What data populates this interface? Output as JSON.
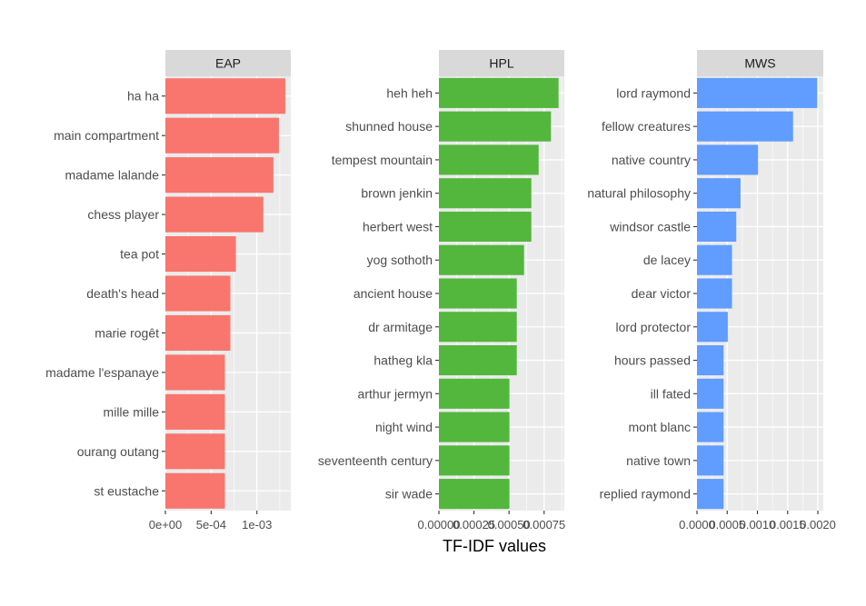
{
  "chart_data": {
    "type": "bar",
    "orientation": "horizontal",
    "xlabel": "TF-IDF values",
    "bar_colors": {
      "EAP": "#F8766D",
      "HPL": "#53B73E",
      "MWS": "#619CFF"
    },
    "panel_background": "#EBEBEB",
    "strip_background": "#D9D9D9",
    "grid": true,
    "panels": [
      {
        "name": "EAP",
        "xlim": [
          0,
          0.00137
        ],
        "xticks": [
          0,
          0.0005,
          0.001
        ],
        "xtick_labels": [
          "0e+00",
          "5e-04",
          "1e-03"
        ],
        "categories": [
          "ha ha",
          "main compartment",
          "madame lalande",
          "chess player",
          "tea pot",
          "death's head",
          "marie rogêt",
          "madame l'espanaye",
          "mille mille",
          "ourang outang",
          "st eustache"
        ],
        "values": [
          0.00131,
          0.00124,
          0.00118,
          0.00107,
          0.00077,
          0.00071,
          0.00071,
          0.00065,
          0.00065,
          0.00065,
          0.00065
        ]
      },
      {
        "name": "HPL",
        "xlim": [
          0,
          0.000894
        ],
        "xticks": [
          0,
          0.00025,
          0.0005,
          0.00075
        ],
        "xtick_labels": [
          "0.00000",
          "0.00025",
          "0.00050",
          "0.00075"
        ],
        "categories": [
          "heh heh",
          "shunned house",
          "tempest mountain",
          "brown jenkin",
          "herbert west",
          "yog sothoth",
          "ancient house",
          "dr armitage",
          "hatheg kla",
          "arthur jermyn",
          "night wind",
          "seventeenth century",
          "sir wade"
        ],
        "values": [
          0.000853,
          0.000799,
          0.000711,
          0.000659,
          0.000659,
          0.000607,
          0.000555,
          0.000555,
          0.000555,
          0.000503,
          0.000503,
          0.000503,
          0.000503
        ]
      },
      {
        "name": "MWS",
        "xlim": [
          0,
          0.00209
        ],
        "xticks": [
          0,
          0.0005,
          0.001,
          0.0015,
          0.002
        ],
        "xtick_labels": [
          "0.0000",
          "0.0005",
          "0.0010",
          "0.0015",
          "0.0020"
        ],
        "categories": [
          "lord raymond",
          "fellow creatures",
          "native country",
          "natural philosophy",
          "windsor castle",
          "de lacey",
          "dear victor",
          "lord protector",
          "hours passed",
          "ill fated",
          "mont blanc",
          "native town",
          "replied raymond"
        ],
        "values": [
          0.00199,
          0.00159,
          0.00101,
          0.00072,
          0.00065,
          0.00058,
          0.00058,
          0.00051,
          0.00044,
          0.00044,
          0.00044,
          0.00044,
          0.00044
        ]
      }
    ]
  }
}
